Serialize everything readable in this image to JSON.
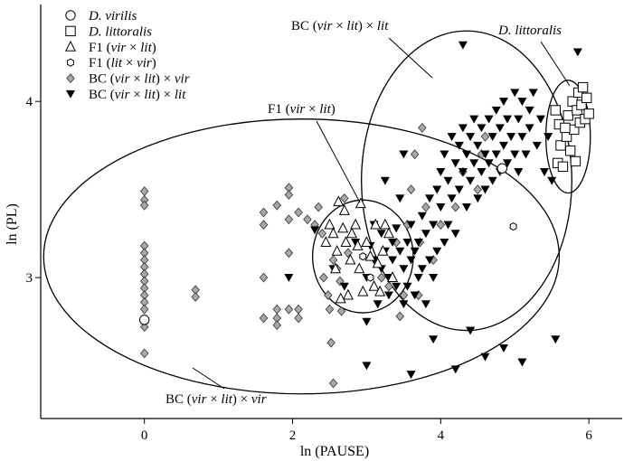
{
  "chart_data": {
    "type": "scatter",
    "xlabel": "ln (PAUSE)",
    "ylabel": "ln (PL)",
    "xlim": [
      -1.4,
      6.45
    ],
    "ylim": [
      2.2,
      4.55
    ],
    "x_ticks": [
      0,
      2,
      4,
      6
    ],
    "y_ticks": [
      3,
      4
    ],
    "grid": false,
    "legend_placement": "top-left",
    "series": [
      {
        "name": "D. virilis",
        "marker": "circle-open",
        "points": [
          [
            0.0,
            2.76
          ],
          [
            4.83,
            3.62
          ]
        ]
      },
      {
        "name": "D. littoralis",
        "marker": "square-open",
        "points": [
          [
            5.55,
            3.95
          ],
          [
            5.6,
            3.87
          ],
          [
            5.62,
            3.75
          ],
          [
            5.58,
            3.65
          ],
          [
            5.65,
            3.63
          ],
          [
            5.7,
            3.8
          ],
          [
            5.72,
            3.92
          ],
          [
            5.75,
            3.72
          ],
          [
            5.78,
            4.0
          ],
          [
            5.8,
            3.84
          ],
          [
            5.82,
            3.66
          ],
          [
            5.84,
            3.95
          ],
          [
            5.86,
            4.05
          ],
          [
            5.88,
            3.88
          ],
          [
            5.9,
            3.98
          ],
          [
            5.92,
            4.08
          ],
          [
            5.95,
            3.9
          ],
          [
            5.97,
            4.02
          ],
          [
            6.0,
            3.93
          ],
          [
            5.68,
            3.85
          ]
        ]
      },
      {
        "name": "F1 (vir × lit)",
        "marker": "triangle-open",
        "points": [
          [
            2.45,
            3.2
          ],
          [
            2.5,
            3.3
          ],
          [
            2.55,
            3.25
          ],
          [
            2.6,
            3.15
          ],
          [
            2.62,
            3.43
          ],
          [
            2.7,
            3.38
          ],
          [
            2.72,
            3.2
          ],
          [
            2.78,
            3.1
          ],
          [
            2.8,
            3.25
          ],
          [
            2.85,
            3.3
          ],
          [
            2.88,
            3.18
          ],
          [
            2.9,
            3.05
          ],
          [
            2.95,
            2.92
          ],
          [
            3.0,
            3.2
          ],
          [
            3.05,
            3.12
          ],
          [
            3.1,
            2.95
          ],
          [
            3.12,
            3.3
          ],
          [
            3.15,
            3.08
          ],
          [
            3.18,
            2.92
          ],
          [
            3.22,
            3.15
          ],
          [
            2.75,
            2.9
          ],
          [
            2.65,
            2.88
          ],
          [
            3.25,
            3.3
          ],
          [
            3.3,
            3.25
          ],
          [
            2.58,
            3.05
          ],
          [
            2.92,
            3.42
          ],
          [
            3.35,
            3.0
          ],
          [
            2.68,
            3.28
          ]
        ]
      },
      {
        "name": "F1 (lit × vir)",
        "marker": "hexagon-open",
        "points": [
          [
            4.98,
            3.29
          ],
          [
            3.05,
            3.0
          ],
          [
            2.95,
            3.12
          ]
        ]
      },
      {
        "name": "BC (vir × lit) × vir",
        "marker": "diamond-gray",
        "points": [
          [
            0.0,
            3.49
          ],
          [
            0.0,
            3.44
          ],
          [
            0.0,
            3.41
          ],
          [
            0.0,
            3.18
          ],
          [
            0.0,
            3.14
          ],
          [
            0.0,
            3.1
          ],
          [
            0.0,
            3.06
          ],
          [
            0.0,
            3.02
          ],
          [
            0.0,
            2.98
          ],
          [
            0.0,
            2.94
          ],
          [
            0.0,
            2.9
          ],
          [
            0.0,
            2.86
          ],
          [
            0.0,
            2.82
          ],
          [
            0.0,
            2.72
          ],
          [
            0.0,
            2.57
          ],
          [
            0.69,
            2.93
          ],
          [
            0.69,
            2.89
          ],
          [
            1.61,
            3.37
          ],
          [
            1.61,
            3.3
          ],
          [
            1.61,
            3.0
          ],
          [
            1.61,
            2.77
          ],
          [
            1.79,
            3.41
          ],
          [
            1.79,
            2.82
          ],
          [
            1.79,
            2.77
          ],
          [
            1.79,
            2.73
          ],
          [
            1.95,
            3.51
          ],
          [
            1.95,
            3.47
          ],
          [
            1.95,
            3.33
          ],
          [
            1.95,
            3.14
          ],
          [
            1.95,
            2.82
          ],
          [
            2.08,
            3.37
          ],
          [
            2.08,
            2.82
          ],
          [
            2.08,
            2.77
          ],
          [
            2.2,
            3.33
          ],
          [
            2.3,
            3.3
          ],
          [
            2.35,
            3.4
          ],
          [
            2.4,
            3.25
          ],
          [
            2.42,
            3.0
          ],
          [
            2.48,
            2.9
          ],
          [
            2.5,
            2.82
          ],
          [
            2.52,
            2.63
          ],
          [
            2.55,
            2.4
          ],
          [
            2.55,
            3.1
          ],
          [
            2.6,
            3.05
          ],
          [
            2.64,
            2.98
          ],
          [
            2.66,
            2.81
          ],
          [
            2.7,
            3.45
          ],
          [
            2.75,
            3.14
          ],
          [
            3.2,
            3.0
          ],
          [
            3.3,
            2.95
          ],
          [
            3.4,
            3.2
          ],
          [
            3.45,
            2.78
          ],
          [
            3.5,
            2.9
          ],
          [
            3.55,
            3.3
          ],
          [
            3.6,
            3.5
          ],
          [
            3.65,
            3.7
          ],
          [
            3.7,
            2.9
          ],
          [
            3.72,
            3.2
          ],
          [
            3.75,
            3.85
          ],
          [
            3.8,
            3.4
          ],
          [
            3.9,
            3.1
          ],
          [
            4.0,
            3.3
          ],
          [
            4.2,
            3.4
          ],
          [
            4.3,
            3.6
          ],
          [
            4.5,
            3.5
          ],
          [
            4.55,
            3.7
          ],
          [
            4.6,
            3.8
          ]
        ]
      },
      {
        "name": "BC (vir × lit) × lit",
        "marker": "triangle-down-filled",
        "points": [
          [
            1.95,
            3.0
          ],
          [
            2.3,
            3.27
          ],
          [
            2.55,
            3.05
          ],
          [
            2.7,
            2.95
          ],
          [
            2.85,
            3.2
          ],
          [
            3.0,
            3.0
          ],
          [
            3.0,
            2.75
          ],
          [
            3.05,
            3.18
          ],
          [
            3.1,
            3.1
          ],
          [
            3.1,
            3.3
          ],
          [
            3.15,
            2.85
          ],
          [
            3.2,
            3.25
          ],
          [
            3.2,
            3.05
          ],
          [
            3.25,
            3.15
          ],
          [
            3.3,
            3.0
          ],
          [
            3.3,
            2.9
          ],
          [
            3.35,
            3.2
          ],
          [
            3.35,
            3.1
          ],
          [
            3.4,
            3.28
          ],
          [
            3.4,
            2.95
          ],
          [
            3.45,
            3.15
          ],
          [
            3.5,
            3.05
          ],
          [
            3.5,
            2.85
          ],
          [
            3.55,
            3.2
          ],
          [
            3.55,
            2.95
          ],
          [
            3.6,
            3.1
          ],
          [
            3.6,
            3.3
          ],
          [
            3.65,
            2.9
          ],
          [
            3.65,
            3.15
          ],
          [
            3.7,
            3.2
          ],
          [
            3.7,
            3.0
          ],
          [
            3.75,
            3.35
          ],
          [
            3.75,
            3.05
          ],
          [
            3.8,
            3.25
          ],
          [
            3.8,
            2.85
          ],
          [
            3.85,
            3.45
          ],
          [
            3.85,
            3.1
          ],
          [
            3.9,
            3.3
          ],
          [
            3.9,
            3.0
          ],
          [
            3.95,
            3.5
          ],
          [
            3.95,
            3.15
          ],
          [
            4.0,
            3.6
          ],
          [
            4.0,
            3.4
          ],
          [
            4.05,
            3.2
          ],
          [
            4.05,
            3.7
          ],
          [
            4.1,
            3.55
          ],
          [
            4.1,
            3.3
          ],
          [
            4.15,
            3.8
          ],
          [
            4.15,
            3.45
          ],
          [
            4.2,
            3.65
          ],
          [
            4.2,
            3.25
          ],
          [
            4.25,
            3.75
          ],
          [
            4.25,
            3.5
          ],
          [
            4.3,
            3.85
          ],
          [
            4.3,
            3.6
          ],
          [
            4.35,
            3.4
          ],
          [
            4.35,
            3.7
          ],
          [
            4.4,
            3.8
          ],
          [
            4.4,
            3.55
          ],
          [
            4.45,
            3.9
          ],
          [
            4.45,
            3.65
          ],
          [
            4.5,
            3.45
          ],
          [
            4.5,
            3.75
          ],
          [
            4.55,
            3.85
          ],
          [
            4.55,
            3.6
          ],
          [
            4.6,
            3.7
          ],
          [
            4.6,
            3.5
          ],
          [
            4.65,
            3.9
          ],
          [
            4.65,
            3.65
          ],
          [
            4.7,
            3.8
          ],
          [
            4.7,
            3.55
          ],
          [
            4.75,
            3.95
          ],
          [
            4.75,
            3.7
          ],
          [
            4.8,
            3.85
          ],
          [
            4.8,
            3.6
          ],
          [
            4.85,
            4.0
          ],
          [
            4.85,
            3.75
          ],
          [
            4.9,
            3.9
          ],
          [
            4.9,
            3.65
          ],
          [
            4.95,
            3.8
          ],
          [
            5.0,
            4.05
          ],
          [
            5.0,
            3.7
          ],
          [
            5.05,
            3.9
          ],
          [
            5.05,
            3.6
          ],
          [
            5.1,
            4.0
          ],
          [
            5.1,
            3.8
          ],
          [
            5.15,
            3.7
          ],
          [
            5.2,
            3.95
          ],
          [
            5.2,
            3.85
          ],
          [
            5.25,
            4.05
          ],
          [
            5.3,
            3.75
          ],
          [
            5.35,
            3.9
          ],
          [
            5.4,
            3.6
          ],
          [
            5.45,
            3.8
          ],
          [
            5.5,
            3.55
          ],
          [
            3.0,
            2.5
          ],
          [
            3.6,
            2.45
          ],
          [
            4.2,
            2.48
          ],
          [
            4.6,
            2.55
          ],
          [
            3.9,
            2.65
          ],
          [
            4.4,
            2.7
          ],
          [
            4.85,
            2.6
          ],
          [
            5.1,
            2.52
          ],
          [
            5.55,
            2.65
          ],
          [
            4.3,
            4.32
          ],
          [
            5.85,
            4.28
          ],
          [
            3.5,
            3.7
          ],
          [
            3.25,
            3.55
          ],
          [
            3.45,
            3.45
          ]
        ]
      }
    ],
    "ellipses": [
      {
        "name": "BC (vir × lit) × vir",
        "label": "BC (vir × lit) × vir",
        "cx": 2.12,
        "cy": 3.12,
        "rx": 3.48,
        "ry": 0.78
      },
      {
        "name": "F1 (vir × lit)",
        "label": "F1 (vir × lit)",
        "cx": 2.95,
        "cy": 3.12,
        "rx": 0.68,
        "ry": 0.32
      },
      {
        "name": "BC (vir × lit) × lit",
        "label": "BC (vir × lit) × lit",
        "cx": 4.35,
        "cy": 3.55,
        "rx": 1.42,
        "ry": 0.85
      },
      {
        "name": "D. littoralis",
        "label": "D. littoralis",
        "cx": 5.72,
        "cy": 3.8,
        "rx": 0.3,
        "ry": 0.32
      }
    ]
  },
  "legend": {
    "items": [
      {
        "marker": "circle-open",
        "italic_part": "D. virilis",
        "rest": ""
      },
      {
        "marker": "square-open",
        "italic_part": "D. littoralis",
        "rest": ""
      },
      {
        "marker": "triangle-open",
        "prefix": "F1 (",
        "italic_a": "vir",
        "mid": " × ",
        "italic_b": "lit",
        "suffix": ")"
      },
      {
        "marker": "hexagon-open",
        "prefix": "F1 (",
        "italic_a": "lit",
        "mid": " × ",
        "italic_b": "vir",
        "suffix": ")"
      },
      {
        "marker": "diamond-gray",
        "prefix": "BC (",
        "italic_a": "vir",
        "mid": " × ",
        "italic_b": "lit",
        "suffix": ") × ",
        "italic_c": "vir"
      },
      {
        "marker": "triangle-down-filled",
        "prefix": "BC (",
        "italic_a": "vir",
        "mid": " × ",
        "italic_b": "lit",
        "suffix": ") × ",
        "italic_c": "lit"
      }
    ]
  },
  "annotations": {
    "bc_lit": {
      "prefix": "BC (",
      "italic_a": "vir",
      "mid": " × ",
      "italic_b": "lit",
      "suffix": ") × ",
      "italic_c": "lit"
    },
    "f1": {
      "prefix": "F1 (",
      "italic_a": "vir",
      "mid": " × ",
      "italic_b": "lit",
      "suffix": ")"
    },
    "littoralis": {
      "italic_a": "D. littoralis"
    },
    "bc_vir": {
      "prefix": "BC (",
      "italic_a": "vir",
      "mid": " × ",
      "italic_b": "lit",
      "suffix": ") × ",
      "italic_c": "vir"
    }
  },
  "colors": {
    "diamond_fill": "#a8a8a8",
    "filled_marker": "#000000",
    "open_marker_fill": "#ffffff"
  }
}
